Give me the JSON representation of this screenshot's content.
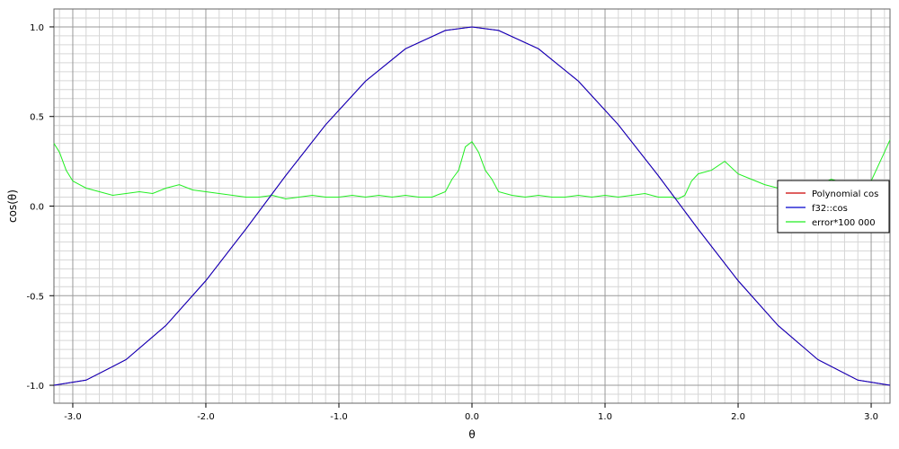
{
  "chart_data": {
    "type": "line",
    "title": "",
    "xlabel": "θ",
    "ylabel": "cos(θ)",
    "xlim": [
      -3.14159,
      3.14159
    ],
    "ylim": [
      -1.1,
      1.1
    ],
    "grid": true,
    "legend_position": "right",
    "x_ticks": [
      {
        "value": -3.0,
        "label": "-3.0"
      },
      {
        "value": -2.0,
        "label": "-2.0"
      },
      {
        "value": -1.0,
        "label": "-1.0"
      },
      {
        "value": 0.0,
        "label": "0.0"
      },
      {
        "value": 1.0,
        "label": "1.0"
      },
      {
        "value": 2.0,
        "label": "2.0"
      },
      {
        "value": 3.0,
        "label": "3.0"
      }
    ],
    "y_ticks": [
      {
        "value": -1.0,
        "label": "-1.0"
      },
      {
        "value": -0.5,
        "label": "-0.5"
      },
      {
        "value": 0.0,
        "label": "0.0"
      },
      {
        "value": 0.5,
        "label": "0.5"
      },
      {
        "value": 1.0,
        "label": "1.0"
      }
    ],
    "series": [
      {
        "name": "Polynomial cos",
        "color": "#cc0000",
        "x": [
          -3.1416,
          -2.9,
          -2.6,
          -2.3,
          -2.0,
          -1.7,
          -1.4,
          -1.1,
          -0.8,
          -0.5,
          -0.2,
          0.0,
          0.2,
          0.5,
          0.8,
          1.1,
          1.4,
          1.7,
          2.0,
          2.3,
          2.6,
          2.9,
          3.1416
        ],
        "y": [
          -1.0,
          -0.971,
          -0.857,
          -0.666,
          -0.416,
          -0.129,
          0.17,
          0.454,
          0.697,
          0.878,
          0.98,
          1.0,
          0.98,
          0.878,
          0.697,
          0.454,
          0.17,
          -0.129,
          -0.416,
          -0.666,
          -0.857,
          -0.971,
          -1.0
        ]
      },
      {
        "name": "f32::cos",
        "color": "#0000cc",
        "x": [
          -3.1416,
          -2.9,
          -2.6,
          -2.3,
          -2.0,
          -1.7,
          -1.4,
          -1.1,
          -0.8,
          -0.5,
          -0.2,
          0.0,
          0.2,
          0.5,
          0.8,
          1.1,
          1.4,
          1.7,
          2.0,
          2.3,
          2.6,
          2.9,
          3.1416
        ],
        "y": [
          -1.0,
          -0.971,
          -0.857,
          -0.666,
          -0.416,
          -0.129,
          0.17,
          0.454,
          0.697,
          0.878,
          0.98,
          1.0,
          0.98,
          0.878,
          0.697,
          0.454,
          0.17,
          -0.129,
          -0.416,
          -0.666,
          -0.857,
          -0.971,
          -1.0
        ]
      },
      {
        "name": "error*100 000",
        "color": "#22ee22",
        "x": [
          -3.1416,
          -3.1,
          -3.05,
          -3.0,
          -2.95,
          -2.9,
          -2.8,
          -2.7,
          -2.6,
          -2.5,
          -2.4,
          -2.3,
          -2.2,
          -2.1,
          -2.0,
          -1.9,
          -1.8,
          -1.7,
          -1.6,
          -1.5,
          -1.4,
          -1.3,
          -1.2,
          -1.1,
          -1.0,
          -0.9,
          -0.8,
          -0.7,
          -0.6,
          -0.5,
          -0.4,
          -0.3,
          -0.2,
          -0.15,
          -0.1,
          -0.05,
          0.0,
          0.05,
          0.1,
          0.15,
          0.2,
          0.3,
          0.4,
          0.5,
          0.6,
          0.7,
          0.8,
          0.9,
          1.0,
          1.1,
          1.2,
          1.3,
          1.4,
          1.5,
          1.55,
          1.6,
          1.65,
          1.7,
          1.8,
          1.9,
          2.0,
          2.1,
          2.2,
          2.3,
          2.4,
          2.5,
          2.6,
          2.7,
          2.8,
          2.9,
          3.0,
          3.05,
          3.1,
          3.1416
        ],
        "y": [
          0.35,
          0.3,
          0.2,
          0.14,
          0.12,
          0.1,
          0.08,
          0.06,
          0.07,
          0.08,
          0.07,
          0.1,
          0.12,
          0.09,
          0.08,
          0.07,
          0.06,
          0.05,
          0.05,
          0.06,
          0.04,
          0.05,
          0.06,
          0.05,
          0.05,
          0.06,
          0.05,
          0.06,
          0.05,
          0.06,
          0.05,
          0.05,
          0.08,
          0.15,
          0.2,
          0.33,
          0.36,
          0.3,
          0.2,
          0.15,
          0.08,
          0.06,
          0.05,
          0.06,
          0.05,
          0.05,
          0.06,
          0.05,
          0.06,
          0.05,
          0.06,
          0.07,
          0.05,
          0.05,
          0.04,
          0.06,
          0.14,
          0.18,
          0.2,
          0.25,
          0.18,
          0.15,
          0.12,
          0.1,
          0.12,
          0.1,
          0.12,
          0.15,
          0.13,
          0.1,
          0.14,
          0.22,
          0.3,
          0.37
        ]
      }
    ]
  }
}
